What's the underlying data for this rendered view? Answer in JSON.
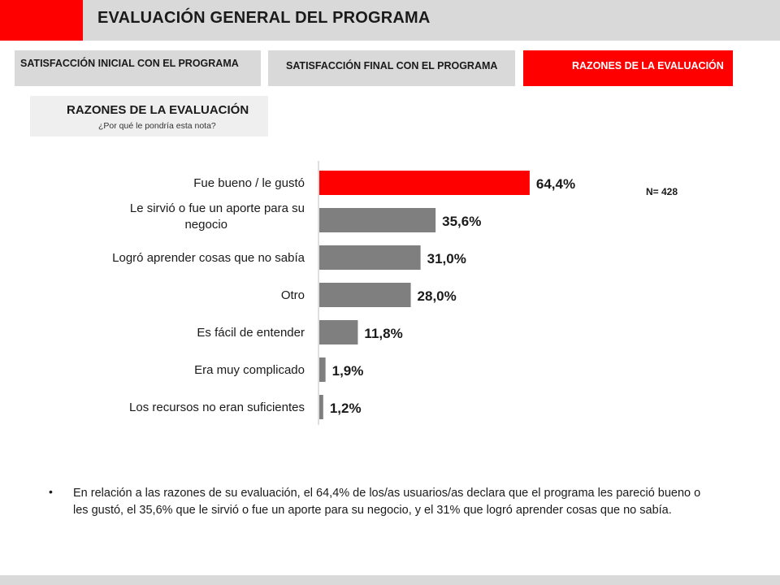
{
  "header": {
    "title": "EVALUACIÓN GENERAL DEL PROGRAMA"
  },
  "tabs": [
    {
      "label": "SATISFACCIÓN INICIAL CON EL PROGRAMA"
    },
    {
      "label": "SATISFACCIÓN FINAL CON EL PROGRAMA"
    },
    {
      "label": "RAZONES DE LA EVALUACIÓN"
    }
  ],
  "section": {
    "title": "RAZONES DE LA EVALUACIÓN",
    "subtitle": "¿Por qué le pondría esta nota?"
  },
  "chart_data": {
    "type": "bar",
    "orientation": "horizontal",
    "categories": [
      "Fue bueno / le gustó",
      "Le sirvió o fue un aporte para su negocio",
      "Logró aprender cosas que no sabía",
      "Otro",
      "Es fácil de entender",
      "Era muy complicado",
      "Los recursos no eran suficientes"
    ],
    "category_lines": [
      [
        "Fue bueno / le gustó"
      ],
      [
        "Le sirvió o fue un aporte para su",
        "negocio"
      ],
      [
        "Logró aprender cosas que no sabía"
      ],
      [
        "Otro"
      ],
      [
        "Es fácil de entender"
      ],
      [
        "Era muy complicado"
      ],
      [
        "Los recursos no eran suficientes"
      ]
    ],
    "values": [
      64.4,
      35.6,
      31.0,
      28.0,
      11.8,
      1.9,
      1.2
    ],
    "value_labels": [
      "64,4%",
      "35,6%",
      "31,0%",
      "28,0%",
      "11,8%",
      "1,9%",
      "1,2%"
    ],
    "xlim": [
      0,
      100
    ],
    "grid": false,
    "legend": "none",
    "colors": {
      "highlight": "#ff0000",
      "default": "#7f7f7f"
    },
    "highlight_index": 0,
    "n_label": "N= 428"
  },
  "bullet": {
    "text": "En relación a las razones de su evaluación, el 64,4% de los/as usuarios/as declara que el programa les pareció bueno o les gustó, el 35,6% que le sirvió o fue un aporte para su negocio,  y el 31% que logró aprender cosas que no sabía."
  }
}
